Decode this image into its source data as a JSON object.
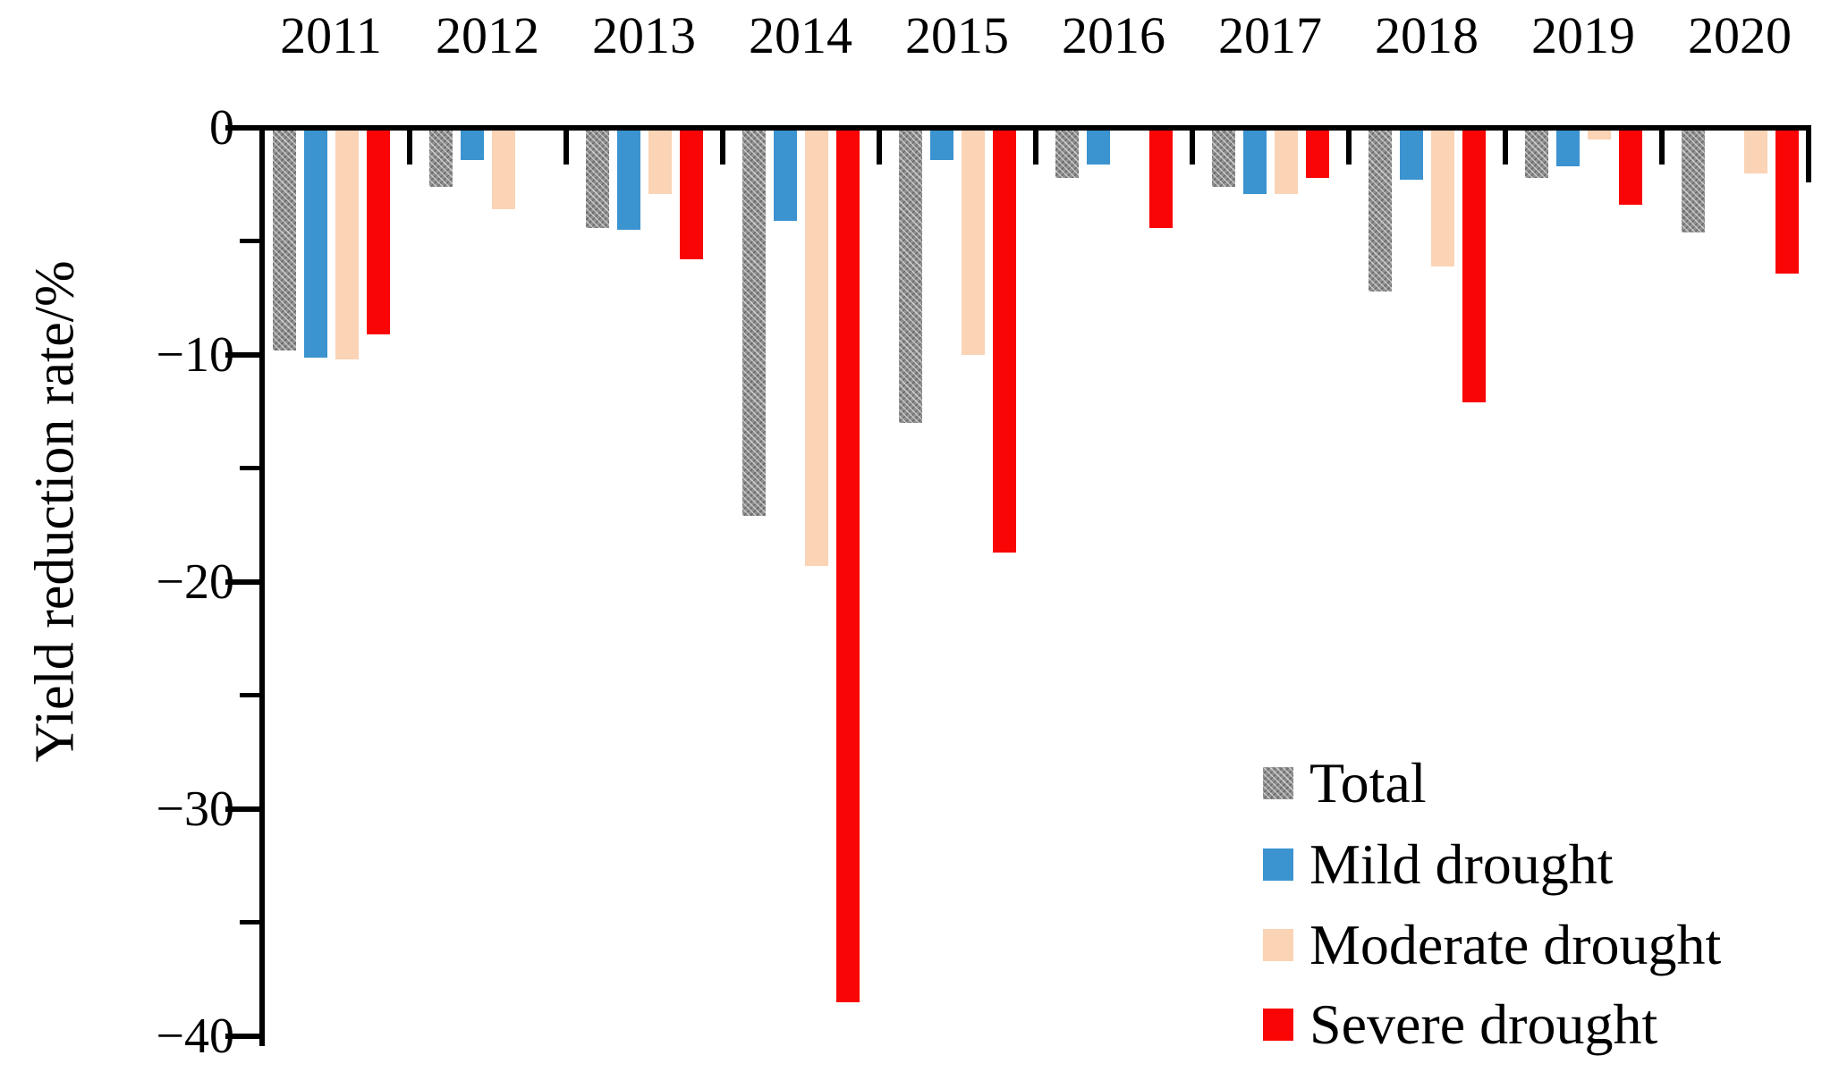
{
  "chart_data": {
    "type": "bar",
    "title": "",
    "xlabel": "",
    "ylabel": "Yield reduction rate/%",
    "categories": [
      "2011",
      "2012",
      "2013",
      "2014",
      "2015",
      "2016",
      "2017",
      "2018",
      "2019",
      "2020"
    ],
    "series": [
      {
        "name": "Total",
        "color": "#8f8f8f",
        "hatch": true,
        "values": [
          -9.8,
          -2.6,
          -4.4,
          -17.1,
          -13.0,
          -2.2,
          -2.6,
          -7.2,
          -2.2,
          -4.6
        ]
      },
      {
        "name": "Mild drought",
        "color": "#3b93d0",
        "hatch": false,
        "values": [
          -10.1,
          -1.4,
          -4.5,
          -4.1,
          -1.4,
          -1.6,
          -2.9,
          -2.3,
          -1.7,
          null
        ]
      },
      {
        "name": "Moderate drought",
        "color": "#fbd3b5",
        "hatch": false,
        "values": [
          -10.2,
          -3.6,
          -2.9,
          -19.3,
          -10.0,
          null,
          -2.9,
          -6.1,
          -0.5,
          -2.0
        ]
      },
      {
        "name": "Severe drought",
        "color": "#f90505",
        "hatch": false,
        "values": [
          -9.1,
          null,
          -5.8,
          -38.5,
          -18.7,
          -4.4,
          -2.2,
          -12.1,
          -3.4,
          -6.4
        ]
      }
    ],
    "ylim": [
      -40,
      0
    ],
    "ytick_labels": [
      "0",
      "−10",
      "−20",
      "−30",
      "−40"
    ],
    "ytick_values": [
      0,
      -10,
      -20,
      -30,
      -40
    ],
    "yminor_values": [
      -5,
      -15,
      -25,
      -35
    ],
    "legend_position": "lower right",
    "grid": false,
    "axis_color": "#000000",
    "background_color": "#ffffff"
  }
}
